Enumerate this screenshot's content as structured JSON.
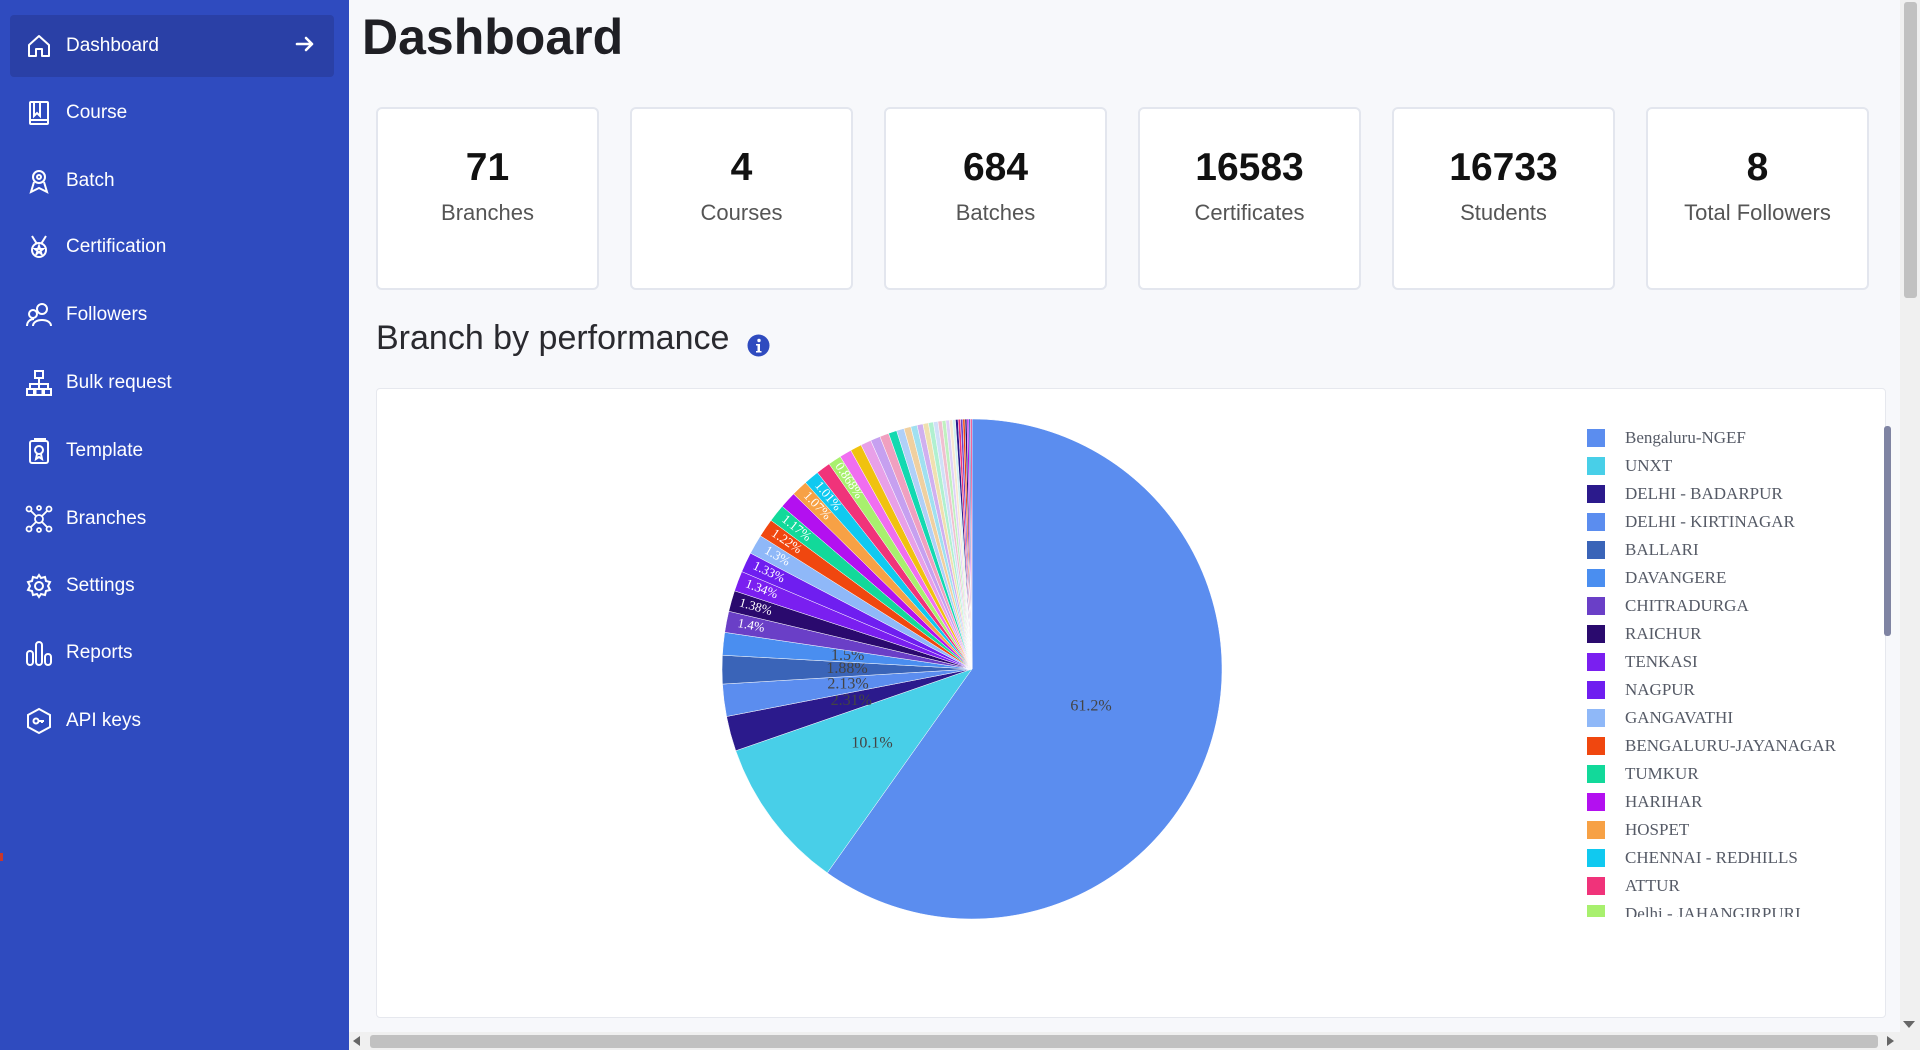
{
  "sidebar": {
    "items": [
      {
        "label": "Dashboard",
        "icon": "home-icon",
        "active": true
      },
      {
        "label": "Course",
        "icon": "book-icon"
      },
      {
        "label": "Batch",
        "icon": "batch-icon"
      },
      {
        "label": "Certification",
        "icon": "medal-icon"
      },
      {
        "label": "Followers",
        "icon": "followers-icon"
      },
      {
        "label": "Bulk request",
        "icon": "hierarchy-icon"
      },
      {
        "label": "Template",
        "icon": "template-icon"
      },
      {
        "label": "Branches",
        "icon": "branches-icon"
      },
      {
        "label": "Settings",
        "icon": "gear-icon"
      },
      {
        "label": "Reports",
        "icon": "reports-icon"
      },
      {
        "label": "API keys",
        "icon": "key-icon"
      }
    ],
    "active_arrow_icon": "arrow-right-icon",
    "colors": {
      "background": "#2f4bbf",
      "active": "#2a40a6",
      "text": "#ffffff"
    }
  },
  "main": {
    "title": "Dashboard",
    "stats": [
      {
        "value": "71",
        "label": "Branches"
      },
      {
        "value": "4",
        "label": "Courses"
      },
      {
        "value": "684",
        "label": "Batches"
      },
      {
        "value": "16583",
        "label": "Certificates"
      },
      {
        "value": "16733",
        "label": "Students"
      },
      {
        "value": "8",
        "label": "Total Followers"
      }
    ],
    "section_title": "Branch by performance",
    "section_info_icon": "info-icon"
  },
  "chart_data": {
    "type": "pie",
    "title": "",
    "legend_position": "right",
    "legend": [
      {
        "name": "Bengaluru-NGEF",
        "color": "#5b8def"
      },
      {
        "name": "UNXT",
        "color": "#48cfe8"
      },
      {
        "name": "DELHI - BADARPUR",
        "color": "#2b1a8c"
      },
      {
        "name": "DELHI - KIRTINAGAR",
        "color": "#5b8def"
      },
      {
        "name": "BALLARI",
        "color": "#3a64b8"
      },
      {
        "name": "DAVANGERE",
        "color": "#4a8ef0"
      },
      {
        "name": "CHITRADURGA",
        "color": "#6a3fc7"
      },
      {
        "name": "RAICHUR",
        "color": "#2a0a6e"
      },
      {
        "name": "TENKASI",
        "color": "#7a1ff0"
      },
      {
        "name": "NAGPUR",
        "color": "#6f1ef0"
      },
      {
        "name": "GANGAVATHI",
        "color": "#8fb8f8"
      },
      {
        "name": "BENGALURU-JAYANAGAR",
        "color": "#f0470f"
      },
      {
        "name": "TUMKUR",
        "color": "#12d99a"
      },
      {
        "name": "HARIHAR",
        "color": "#b310f0"
      },
      {
        "name": "HOSPET",
        "color": "#f7a145"
      },
      {
        "name": "CHENNAI - REDHILLS",
        "color": "#10c9f0"
      },
      {
        "name": "ATTUR",
        "color": "#f0337a"
      },
      {
        "name": "Delhi - JAHANGIRPURI",
        "color": "#a8f06e"
      }
    ],
    "slices": [
      {
        "label": "Bengaluru-NGEF",
        "value": 61.2,
        "color": "#5b8def",
        "text": "61.2%"
      },
      {
        "label": "UNXT",
        "value": 10.1,
        "color": "#48cfe8",
        "text": "10.1%"
      },
      {
        "label": "DELHI - BADARPUR",
        "value": 2.31,
        "color": "#2b1a8c",
        "text": "2.31%"
      },
      {
        "label": "DELHI - KIRTINAGAR",
        "value": 2.13,
        "color": "#5b8def",
        "text": "2.13%"
      },
      {
        "label": "BALLARI",
        "value": 1.88,
        "color": "#3a64b8",
        "text": "1.88%"
      },
      {
        "label": "DAVANGERE",
        "value": 1.5,
        "color": "#4a8ef0",
        "text": "1.5%"
      },
      {
        "label": "CHITRADURGA",
        "value": 1.4,
        "color": "#6a3fc7",
        "text": "1.4%"
      },
      {
        "label": "RAICHUR",
        "value": 1.38,
        "color": "#2a0a6e",
        "text": "1.38%"
      },
      {
        "label": "TENKASI",
        "value": 1.34,
        "color": "#7a1ff0",
        "text": "1.34%"
      },
      {
        "label": "NAGPUR",
        "value": 1.33,
        "color": "#6f1ef0",
        "text": "1.33%"
      },
      {
        "label": "GANGAVATHI",
        "value": 1.3,
        "color": "#8fb8f8",
        "text": "1.3%"
      },
      {
        "label": "BENGALURU-JAYANAGAR",
        "value": 1.22,
        "color": "#f0470f",
        "text": "1.22%"
      },
      {
        "label": "TUMKUR",
        "value": 1.17,
        "color": "#12d99a",
        "text": "1.17%"
      },
      {
        "label": "HARIHAR",
        "value": 1.1,
        "color": "#b310f0",
        "text": ""
      },
      {
        "label": "HOSPET",
        "value": 1.07,
        "color": "#f7a145",
        "text": "1.07%"
      },
      {
        "label": "CHENNAI - REDHILLS",
        "value": 1.01,
        "color": "#10c9f0",
        "text": "1.01%"
      },
      {
        "label": "ATTUR",
        "value": 0.95,
        "color": "#f0337a",
        "text": ""
      },
      {
        "label": "Delhi - JAHANGIRPURI",
        "value": 0.868,
        "color": "#a8f06e",
        "text": "0.868%"
      },
      {
        "label": "",
        "value": 0.8,
        "color": "#f06ef0",
        "text": ""
      },
      {
        "label": "",
        "value": 0.75,
        "color": "#f0c20f",
        "text": ""
      },
      {
        "label": "",
        "value": 0.7,
        "color": "#e8a0e8",
        "text": ""
      },
      {
        "label": "",
        "value": 0.65,
        "color": "#c6a0f0",
        "text": ""
      },
      {
        "label": "",
        "value": 0.6,
        "color": "#f0a0c0",
        "text": ""
      },
      {
        "label": "",
        "value": 0.55,
        "color": "#12d9b0",
        "text": ""
      },
      {
        "label": "",
        "value": 0.5,
        "color": "#b0d0f8",
        "text": ""
      },
      {
        "label": "",
        "value": 0.46,
        "color": "#f0d0a0",
        "text": ""
      },
      {
        "label": "",
        "value": 0.42,
        "color": "#a0e0f0",
        "text": ""
      },
      {
        "label": "",
        "value": 0.39,
        "color": "#d0b0f0",
        "text": ""
      },
      {
        "label": "",
        "value": 0.36,
        "color": "#f0e0b0",
        "text": ""
      },
      {
        "label": "",
        "value": 0.33,
        "color": "#b0f0d0",
        "text": ""
      },
      {
        "label": "",
        "value": 0.3,
        "color": "#d0e0f8",
        "text": ""
      },
      {
        "label": "",
        "value": 0.27,
        "color": "#f0c0d0",
        "text": ""
      },
      {
        "label": "",
        "value": 0.25,
        "color": "#c0f0c0",
        "text": ""
      },
      {
        "label": "",
        "value": 0.23,
        "color": "#e0d0f8",
        "text": ""
      },
      {
        "label": "",
        "value": 0.21,
        "color": "#f8e8d0",
        "text": ""
      },
      {
        "label": "",
        "value": 0.19,
        "color": "#d0f0f0",
        "text": ""
      },
      {
        "label": "",
        "value": 0.17,
        "color": "#2b1a8c",
        "text": ""
      },
      {
        "label": "",
        "value": 0.16,
        "color": "#f0337a",
        "text": ""
      },
      {
        "label": "",
        "value": 0.15,
        "color": "#6a3fc7",
        "text": ""
      },
      {
        "label": "",
        "value": 0.14,
        "color": "#f0470f",
        "text": ""
      },
      {
        "label": "",
        "value": 0.13,
        "color": "#2a0a6e",
        "text": ""
      },
      {
        "label": "",
        "value": 0.12,
        "color": "#b310f0",
        "text": ""
      },
      {
        "label": "",
        "value": 0.11,
        "color": "#3a64b8",
        "text": ""
      },
      {
        "label": "",
        "value": 0.1,
        "color": "#f0337a",
        "text": ""
      }
    ]
  }
}
